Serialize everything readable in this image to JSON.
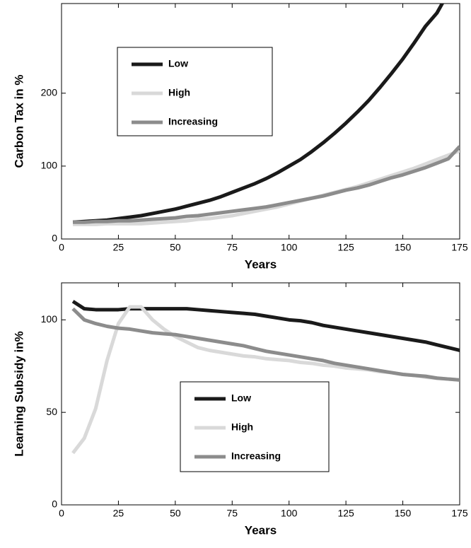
{
  "chart_data": [
    {
      "type": "line",
      "xlabel": "Years",
      "ylabel": "Carbon Tax in %",
      "x": [
        5,
        10,
        15,
        20,
        25,
        30,
        35,
        40,
        45,
        50,
        55,
        60,
        65,
        70,
        75,
        80,
        85,
        90,
        95,
        100,
        105,
        110,
        115,
        120,
        125,
        130,
        135,
        140,
        145,
        150,
        155,
        160,
        165,
        170,
        175
      ],
      "xlim": [
        0,
        175
      ],
      "xticks": [
        0,
        25,
        50,
        75,
        100,
        125,
        150,
        175
      ],
      "ylim": [
        0,
        323
      ],
      "yticks": [
        0,
        100,
        200
      ],
      "series": [
        {
          "name": "Low",
          "color": "#1a1a1a",
          "values": [
            23,
            24,
            25,
            26,
            28,
            30,
            32,
            35,
            38,
            41,
            45,
            49,
            53,
            58,
            64,
            70,
            76,
            83,
            91,
            100,
            109,
            120,
            132,
            145,
            159,
            174,
            190,
            208,
            227,
            247,
            269,
            292,
            310,
            338,
            null
          ]
        },
        {
          "name": "High",
          "color": "#d9d9d9",
          "values": [
            20,
            20,
            20,
            21,
            21,
            21,
            21,
            22,
            23,
            24,
            25,
            27,
            28,
            30,
            32,
            35,
            38,
            41,
            44,
            48,
            52,
            56,
            60,
            64,
            68,
            72,
            77,
            82,
            87,
            92,
            97,
            103,
            109,
            115,
            121
          ]
        },
        {
          "name": "Increasing",
          "color": "#8c8c8c",
          "values": [
            23,
            23,
            24,
            24,
            25,
            25,
            26,
            27,
            28,
            29,
            31,
            32,
            34,
            36,
            38,
            40,
            42,
            44,
            47,
            50,
            53,
            56,
            59,
            63,
            67,
            70,
            74,
            79,
            84,
            88,
            93,
            98,
            104,
            110,
            127
          ]
        }
      ]
    },
    {
      "type": "line",
      "xlabel": "Years",
      "ylabel": "Learning Subsidy in%",
      "x": [
        5,
        10,
        15,
        20,
        25,
        30,
        35,
        40,
        45,
        50,
        55,
        60,
        65,
        70,
        75,
        80,
        85,
        90,
        95,
        100,
        105,
        110,
        115,
        120,
        125,
        130,
        135,
        140,
        145,
        150,
        155,
        160,
        165,
        170,
        175
      ],
      "xlim": [
        0,
        175
      ],
      "xticks": [
        0,
        25,
        50,
        75,
        100,
        125,
        150,
        175
      ],
      "ylim": [
        0,
        120
      ],
      "yticks": [
        0,
        50,
        100
      ],
      "series": [
        {
          "name": "Low",
          "color": "#1a1a1a",
          "values": [
            110,
            106,
            105.5,
            105.5,
            105.5,
            106,
            106,
            106,
            106,
            106,
            106,
            105.5,
            105,
            104.5,
            104,
            103.5,
            103,
            102,
            101,
            100,
            99.5,
            98.5,
            97,
            96,
            95,
            94,
            93,
            92,
            91,
            90,
            89,
            88,
            86.5,
            85,
            83.5
          ]
        },
        {
          "name": "High",
          "color": "#d9d9d9",
          "values": [
            28,
            36,
            52,
            78,
            98,
            107,
            107,
            100,
            95,
            91,
            88,
            85,
            83.5,
            82.5,
            81.5,
            80.5,
            80,
            79,
            78.5,
            78,
            77,
            76.5,
            75.5,
            75,
            74,
            73.5,
            73,
            72,
            71.5,
            70.5,
            70,
            69,
            68.5,
            68,
            67.5
          ]
        },
        {
          "name": "Increasing",
          "color": "#8c8c8c",
          "values": [
            106,
            100,
            98,
            96.5,
            95.5,
            95,
            94,
            93,
            92.5,
            92,
            91,
            90,
            89,
            88,
            87,
            86,
            84.5,
            83,
            82,
            81,
            80,
            79,
            78,
            76.5,
            75.5,
            74.5,
            73.5,
            72.5,
            71.5,
            70.5,
            70,
            69.5,
            68.5,
            68,
            67.5
          ]
        }
      ]
    }
  ]
}
